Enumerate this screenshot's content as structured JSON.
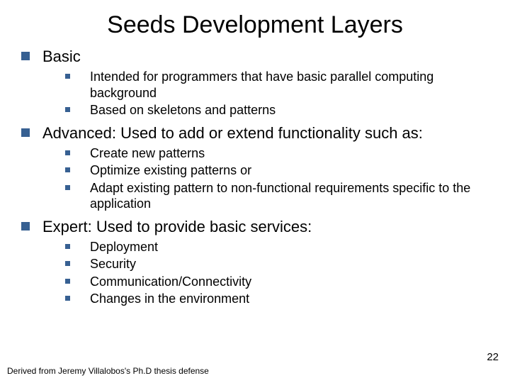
{
  "title": "Seeds Development Layers",
  "bullet_color_lvl1": "#376092",
  "bullet_color_lvl2": "#376092",
  "sections": [
    {
      "heading": "Basic",
      "desc": "",
      "items": [
        "Intended for programmers that have basic parallel computing background",
        "Based on skeletons and patterns"
      ]
    },
    {
      "heading": "Advanced:",
      "desc": "  Used to add or extend functionality such as:",
      "items": [
        "Create new patterns",
        "Optimize existing patterns or",
        "Adapt existing pattern to non-functional requirements specific to the application"
      ]
    },
    {
      "heading": "Expert:",
      "desc": "  Used to provide basic services:",
      "items": [
        "Deployment",
        "Security",
        "Communication/Connectivity",
        "Changes in the environment"
      ]
    }
  ],
  "footer": "Derived from Jeremy Villalobos's Ph.D thesis defense",
  "page_number": "22"
}
